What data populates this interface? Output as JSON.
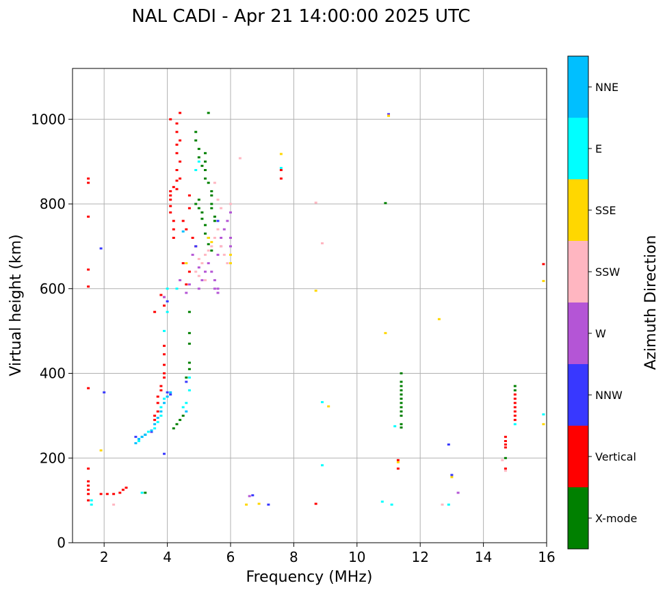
{
  "chart_data": {
    "type": "scatter",
    "title": "NAL CADI - Apr 21 14:00:00 2025 UTC",
    "xlabel": "Frequency (MHz)",
    "ylabel": "Virtual height (km)",
    "xlim": [
      1,
      16
    ],
    "ylim": [
      0,
      1120
    ],
    "xticks": [
      2,
      4,
      6,
      8,
      10,
      12,
      14,
      16
    ],
    "yticks": [
      0,
      200,
      400,
      600,
      800,
      1000
    ],
    "grid": true,
    "colorbar": {
      "title": "Azimuth Direction",
      "categories": [
        {
          "name": "X-mode",
          "color": "#008000"
        },
        {
          "name": "Vertical",
          "color": "#ff0000"
        },
        {
          "name": "NNW",
          "color": "#3838ff"
        },
        {
          "name": "W",
          "color": "#b455d6"
        },
        {
          "name": "SSW",
          "color": "#ffb6c1"
        },
        {
          "name": "SSE",
          "color": "#ffd700"
        },
        {
          "name": "E",
          "color": "#00ffff"
        },
        {
          "name": "NNE",
          "color": "#00bfff"
        }
      ]
    },
    "series": [
      {
        "name": "Vertical",
        "points": [
          [
            1.5,
            860
          ],
          [
            1.5,
            850
          ],
          [
            1.5,
            770
          ],
          [
            1.5,
            645
          ],
          [
            1.5,
            605
          ],
          [
            1.5,
            365
          ],
          [
            1.5,
            175
          ],
          [
            1.5,
            145
          ],
          [
            1.5,
            135
          ],
          [
            1.5,
            125
          ],
          [
            1.5,
            115
          ],
          [
            1.5,
            100
          ],
          [
            1.9,
            115
          ],
          [
            2.1,
            115
          ],
          [
            2.3,
            115
          ],
          [
            2.5,
            118
          ],
          [
            2.6,
            125
          ],
          [
            2.7,
            130
          ],
          [
            3.3,
            255
          ],
          [
            3.5,
            262
          ],
          [
            3.6,
            290
          ],
          [
            3.6,
            300
          ],
          [
            3.7,
            310
          ],
          [
            3.7,
            330
          ],
          [
            3.7,
            345
          ],
          [
            3.8,
            360
          ],
          [
            3.8,
            370
          ],
          [
            3.9,
            390
          ],
          [
            3.9,
            400
          ],
          [
            3.9,
            420
          ],
          [
            3.9,
            445
          ],
          [
            3.9,
            465
          ],
          [
            3.9,
            560
          ],
          [
            3.9,
            580
          ],
          [
            3.8,
            585
          ],
          [
            3.6,
            545
          ],
          [
            4.1,
            1000
          ],
          [
            4.1,
            830
          ],
          [
            4.1,
            820
          ],
          [
            4.1,
            810
          ],
          [
            4.1,
            795
          ],
          [
            4.1,
            780
          ],
          [
            4.2,
            760
          ],
          [
            4.2,
            740
          ],
          [
            4.2,
            720
          ],
          [
            4.3,
            990
          ],
          [
            4.3,
            970
          ],
          [
            4.3,
            940
          ],
          [
            4.3,
            920
          ],
          [
            4.3,
            880
          ],
          [
            4.3,
            855
          ],
          [
            4.3,
            835
          ],
          [
            4.4,
            1015
          ],
          [
            4.4,
            950
          ],
          [
            4.4,
            900
          ],
          [
            4.4,
            860
          ],
          [
            4.2,
            840
          ],
          [
            4.5,
            760
          ],
          [
            4.6,
            740
          ],
          [
            4.7,
            820
          ],
          [
            4.7,
            790
          ],
          [
            4.8,
            720
          ],
          [
            4.9,
            700
          ],
          [
            4.6,
            610
          ],
          [
            4.7,
            640
          ],
          [
            4.5,
            660
          ],
          [
            7.6,
            880
          ],
          [
            7.6,
            860
          ],
          [
            8.7,
            92
          ],
          [
            11.3,
            195
          ],
          [
            11.3,
            175
          ],
          [
            14.7,
            250
          ],
          [
            14.7,
            240
          ],
          [
            14.7,
            232
          ],
          [
            14.7,
            225
          ],
          [
            14.7,
            175
          ],
          [
            15.0,
            350
          ],
          [
            15.0,
            340
          ],
          [
            15.0,
            330
          ],
          [
            15.0,
            320
          ],
          [
            15.0,
            310
          ],
          [
            15.0,
            300
          ],
          [
            15.0,
            290
          ],
          [
            15.9,
            658
          ]
        ]
      },
      {
        "name": "X-mode",
        "points": [
          [
            3.3,
            118
          ],
          [
            4.2,
            270
          ],
          [
            4.3,
            280
          ],
          [
            4.4,
            290
          ],
          [
            4.5,
            300
          ],
          [
            4.6,
            390
          ],
          [
            4.7,
            410
          ],
          [
            4.7,
            425
          ],
          [
            4.7,
            470
          ],
          [
            4.7,
            495
          ],
          [
            4.7,
            545
          ],
          [
            4.9,
            970
          ],
          [
            4.9,
            950
          ],
          [
            5.0,
            930
          ],
          [
            5.0,
            910
          ],
          [
            5.1,
            890
          ],
          [
            5.2,
            920
          ],
          [
            5.2,
            900
          ],
          [
            5.2,
            880
          ],
          [
            5.2,
            860
          ],
          [
            5.3,
            1015
          ],
          [
            5.3,
            850
          ],
          [
            5.4,
            830
          ],
          [
            5.4,
            820
          ],
          [
            5.4,
            800
          ],
          [
            5.4,
            790
          ],
          [
            5.5,
            770
          ],
          [
            5.5,
            760
          ],
          [
            5.0,
            810
          ],
          [
            5.0,
            790
          ],
          [
            5.1,
            780
          ],
          [
            5.1,
            765
          ],
          [
            5.2,
            750
          ],
          [
            5.2,
            730
          ],
          [
            5.3,
            720
          ],
          [
            5.3,
            705
          ],
          [
            5.4,
            690
          ],
          [
            4.9,
            800
          ],
          [
            10.9,
            802
          ],
          [
            11.4,
            400
          ],
          [
            11.4,
            380
          ],
          [
            11.4,
            370
          ],
          [
            11.4,
            360
          ],
          [
            11.4,
            350
          ],
          [
            11.4,
            340
          ],
          [
            11.4,
            330
          ],
          [
            11.4,
            320
          ],
          [
            11.4,
            310
          ],
          [
            11.4,
            300
          ],
          [
            11.4,
            280
          ],
          [
            11.4,
            272
          ],
          [
            14.7,
            200
          ],
          [
            15.0,
            370
          ],
          [
            15.0,
            360
          ]
        ]
      },
      {
        "name": "NNW",
        "points": [
          [
            1.9,
            695
          ],
          [
            2.0,
            355
          ],
          [
            3.0,
            250
          ],
          [
            3.5,
            262
          ],
          [
            3.9,
            210
          ],
          [
            4.0,
            355
          ],
          [
            4.1,
            350
          ],
          [
            4.0,
            570
          ],
          [
            4.6,
            380
          ],
          [
            5.6,
            760
          ],
          [
            6.7,
            112
          ],
          [
            7.2,
            90
          ],
          [
            11.0,
            1012
          ],
          [
            12.9,
            232
          ],
          [
            13.0,
            160
          ],
          [
            4.9,
            700
          ]
        ]
      },
      {
        "name": "W",
        "points": [
          [
            5.3,
            660
          ],
          [
            5.4,
            640
          ],
          [
            5.5,
            620
          ],
          [
            5.5,
            600
          ],
          [
            5.6,
            600
          ],
          [
            5.6,
            590
          ],
          [
            5.6,
            680
          ],
          [
            5.7,
            700
          ],
          [
            5.7,
            720
          ],
          [
            5.8,
            740
          ],
          [
            5.9,
            760
          ],
          [
            6.0,
            780
          ],
          [
            6.0,
            720
          ],
          [
            6.0,
            700
          ],
          [
            4.4,
            620
          ],
          [
            4.6,
            590
          ],
          [
            4.7,
            610
          ],
          [
            5.0,
            600
          ],
          [
            5.1,
            620
          ],
          [
            5.2,
            640
          ],
          [
            5.0,
            650
          ],
          [
            4.8,
            680
          ],
          [
            6.6,
            110
          ],
          [
            11.0,
            1010
          ],
          [
            13.2,
            118
          ],
          [
            3.9,
            580
          ]
        ]
      },
      {
        "name": "SSW",
        "points": [
          [
            2.3,
            90
          ],
          [
            5.0,
            670
          ],
          [
            5.1,
            660
          ],
          [
            5.2,
            680
          ],
          [
            5.3,
            690
          ],
          [
            5.4,
            700
          ],
          [
            5.5,
            720
          ],
          [
            5.6,
            740
          ],
          [
            5.7,
            700
          ],
          [
            5.8,
            680
          ],
          [
            5.9,
            660
          ],
          [
            6.0,
            800
          ],
          [
            5.5,
            850
          ],
          [
            5.6,
            810
          ],
          [
            5.7,
            790
          ],
          [
            4.9,
            640
          ],
          [
            5.0,
            630
          ],
          [
            5.2,
            620
          ],
          [
            6.3,
            908
          ],
          [
            8.7,
            803
          ],
          [
            8.9,
            707
          ],
          [
            12.7,
            90
          ],
          [
            14.7,
            170
          ],
          [
            14.6,
            195
          ]
        ]
      },
      {
        "name": "SSE",
        "points": [
          [
            1.9,
            218
          ],
          [
            6.0,
            680
          ],
          [
            6.0,
            660
          ],
          [
            6.5,
            90
          ],
          [
            6.9,
            92
          ],
          [
            7.6,
            918
          ],
          [
            8.7,
            595
          ],
          [
            9.1,
            322
          ],
          [
            10.9,
            495
          ],
          [
            11.0,
            1008
          ],
          [
            11.3,
            190
          ],
          [
            12.6,
            528
          ],
          [
            13.0,
            155
          ],
          [
            15.9,
            618
          ],
          [
            15.9,
            280
          ],
          [
            5.3,
            720
          ],
          [
            5.4,
            710
          ],
          [
            4.6,
            660
          ]
        ]
      },
      {
        "name": "E",
        "points": [
          [
            1.6,
            90
          ],
          [
            1.6,
            100
          ],
          [
            3.2,
            118
          ],
          [
            3.1,
            240
          ],
          [
            3.2,
            250
          ],
          [
            3.3,
            255
          ],
          [
            3.4,
            262
          ],
          [
            3.6,
            270
          ],
          [
            3.7,
            285
          ],
          [
            3.8,
            300
          ],
          [
            3.8,
            320
          ],
          [
            3.9,
            340
          ],
          [
            3.9,
            500
          ],
          [
            4.0,
            600
          ],
          [
            4.0,
            545
          ],
          [
            4.3,
            600
          ],
          [
            4.7,
            360
          ],
          [
            4.7,
            390
          ],
          [
            4.5,
            320
          ],
          [
            4.6,
            330
          ],
          [
            4.9,
            880
          ],
          [
            5.0,
            900
          ],
          [
            7.6,
            885
          ],
          [
            8.9,
            183
          ],
          [
            8.9,
            332
          ],
          [
            10.8,
            97
          ],
          [
            11.1,
            90
          ],
          [
            11.2,
            275
          ],
          [
            12.9,
            90
          ],
          [
            15.0,
            280
          ],
          [
            15.9,
            303
          ]
        ]
      },
      {
        "name": "NNE",
        "points": [
          [
            3.0,
            235
          ],
          [
            3.1,
            245
          ],
          [
            3.2,
            250
          ],
          [
            3.3,
            255
          ],
          [
            3.5,
            265
          ],
          [
            3.6,
            280
          ],
          [
            3.7,
            295
          ],
          [
            3.8,
            310
          ],
          [
            3.9,
            330
          ],
          [
            4.0,
            345
          ],
          [
            4.1,
            355
          ],
          [
            4.6,
            310
          ],
          [
            4.5,
            735
          ]
        ]
      }
    ]
  }
}
